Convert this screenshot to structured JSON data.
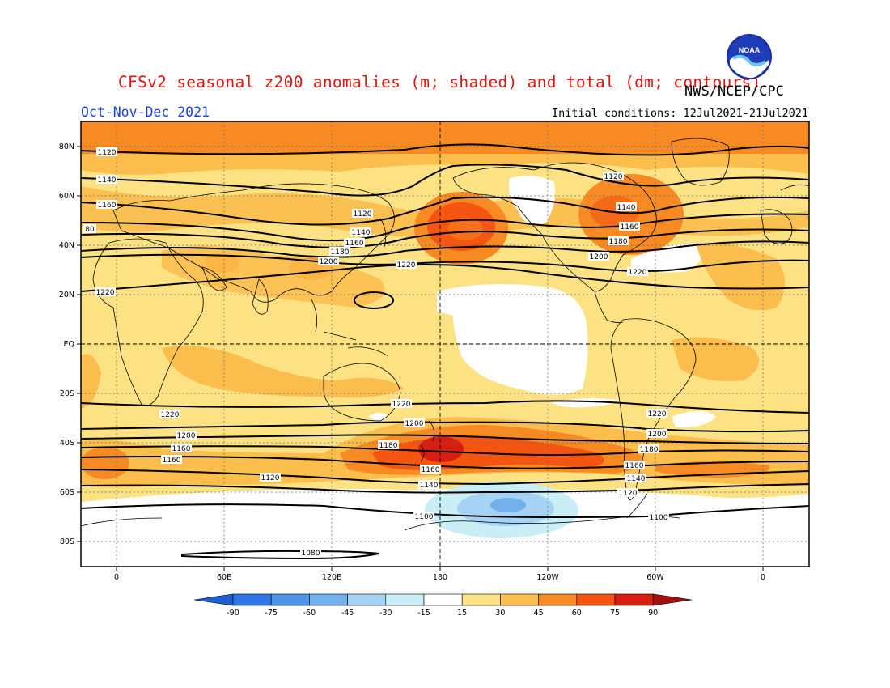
{
  "header": {
    "title": "CFSv2 seasonal z200 anomalies (m; shaded) and total (dm; contours)",
    "agency": "NWS/NCEP/CPC",
    "season": "Oct-Nov-Dec 2021",
    "initial_conditions": "Initial conditions: 12Jul2021-21Jul2021",
    "logo_text": "NOAA"
  },
  "map": {
    "lat_labels": [
      "80N",
      "60N",
      "40N",
      "20N",
      "EQ",
      "20S",
      "40S",
      "60S",
      "80S"
    ],
    "lon_labels": [
      "0",
      "60E",
      "120E",
      "180",
      "120W",
      "60W",
      "0"
    ],
    "contours": [
      {
        "label": "1120",
        "level": 1120
      },
      {
        "label": "1140",
        "level": 1140
      },
      {
        "label": "1160",
        "level": 1160
      },
      {
        "label": "1180",
        "level": 1180
      },
      {
        "label": "1200",
        "level": 1200
      },
      {
        "label": "1220",
        "level": 1220
      },
      {
        "label": "1100",
        "level": 1100
      },
      {
        "label": "1080",
        "level": 1080
      },
      {
        "label": "80",
        "level": 80
      }
    ]
  },
  "colorbar": {
    "labels": [
      "-90",
      "-75",
      "-60",
      "-45",
      "-30",
      "-15",
      "15",
      "30",
      "45",
      "60",
      "75",
      "90"
    ],
    "colors": [
      "#1f5fd6",
      "#2d77e6",
      "#4c95ea",
      "#73b1ee",
      "#a6d3f4",
      "#c9eef6",
      "#ffffff",
      "#fce283",
      "#fbbd4c",
      "#f88a24",
      "#f45510",
      "#d81e10",
      "#a50f0f"
    ]
  }
}
